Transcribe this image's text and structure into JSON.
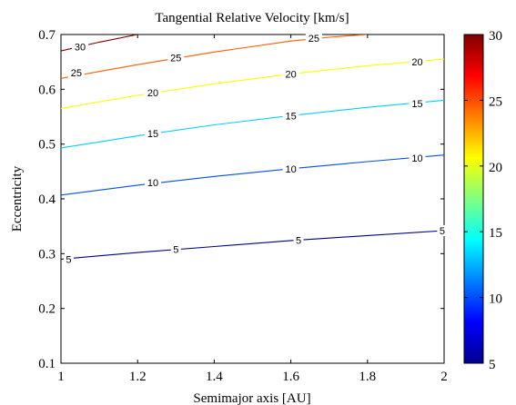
{
  "chart_data": {
    "type": "contour",
    "title": "Tangential Relative Velocity [km/s]",
    "xlabel": "Semimajor axis [AU]",
    "ylabel": "Eccentricity",
    "xlim": [
      1,
      2
    ],
    "ylim": [
      0.1,
      0.7
    ],
    "xticks": [
      "1",
      "1.2",
      "1.4",
      "1.6",
      "1.8",
      "2"
    ],
    "yticks": [
      "0.1",
      "0.2",
      "0.3",
      "0.4",
      "0.5",
      "0.6",
      "0.7"
    ],
    "grid": false,
    "colormap": "jet",
    "colorbar": {
      "range": [
        5,
        30
      ],
      "ticks": [
        "5",
        "10",
        "15",
        "20",
        "25",
        "30"
      ]
    },
    "series": [
      {
        "level": "5",
        "color": "#00008f",
        "points": [
          [
            1.0,
            0.29
          ],
          [
            1.2,
            0.302
          ],
          [
            1.4,
            0.313
          ],
          [
            1.6,
            0.324
          ],
          [
            1.8,
            0.333
          ],
          [
            2.0,
            0.342
          ]
        ],
        "labels": [
          [
            1.02,
            0.29
          ],
          [
            1.3,
            0.308
          ],
          [
            1.62,
            0.325
          ],
          [
            1.995,
            0.342
          ]
        ]
      },
      {
        "level": "10",
        "color": "#0050e8",
        "points": [
          [
            1.0,
            0.407
          ],
          [
            1.2,
            0.425
          ],
          [
            1.4,
            0.441
          ],
          [
            1.6,
            0.455
          ],
          [
            1.8,
            0.468
          ],
          [
            2.0,
            0.48
          ]
        ],
        "labels": [
          [
            1.24,
            0.43
          ],
          [
            1.6,
            0.455
          ],
          [
            1.93,
            0.475
          ]
        ]
      },
      {
        "level": "15",
        "color": "#00d0ff",
        "points": [
          [
            1.0,
            0.493
          ],
          [
            1.2,
            0.515
          ],
          [
            1.4,
            0.535
          ],
          [
            1.6,
            0.552
          ],
          [
            1.8,
            0.567
          ],
          [
            2.0,
            0.58
          ]
        ],
        "labels": [
          [
            1.24,
            0.519
          ],
          [
            1.6,
            0.552
          ],
          [
            1.93,
            0.574
          ]
        ]
      },
      {
        "level": "20",
        "color": "#ffff00",
        "points": [
          [
            1.0,
            0.565
          ],
          [
            1.2,
            0.589
          ],
          [
            1.4,
            0.61
          ],
          [
            1.6,
            0.628
          ],
          [
            1.8,
            0.643
          ],
          [
            2.0,
            0.655
          ]
        ],
        "labels": [
          [
            1.24,
            0.594
          ],
          [
            1.6,
            0.628
          ],
          [
            1.93,
            0.65
          ]
        ]
      },
      {
        "level": "25",
        "color": "#ff5a00",
        "points": [
          [
            1.0,
            0.62
          ],
          [
            1.2,
            0.645
          ],
          [
            1.4,
            0.668
          ],
          [
            1.6,
            0.688
          ],
          [
            1.7,
            0.695
          ],
          [
            1.8,
            0.7
          ]
        ],
        "labels": [
          [
            1.04,
            0.63
          ],
          [
            1.3,
            0.658
          ],
          [
            1.66,
            0.693
          ]
        ]
      },
      {
        "level": "30",
        "color": "#800000",
        "points": [
          [
            1.0,
            0.67
          ],
          [
            1.1,
            0.686
          ],
          [
            1.2,
            0.7
          ]
        ],
        "labels": [
          [
            1.05,
            0.678
          ]
        ]
      }
    ]
  }
}
